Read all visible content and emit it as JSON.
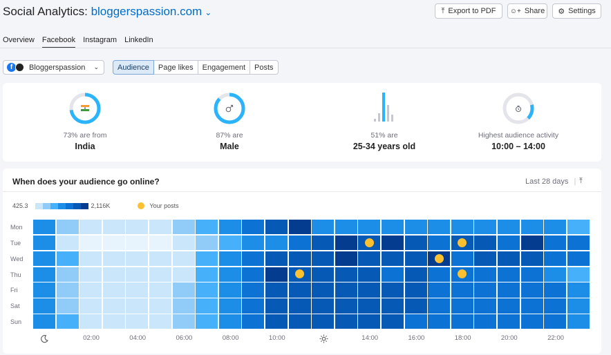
{
  "header": {
    "title_prefix": "Social Analytics:",
    "domain": "bloggerspassion.com",
    "buttons": {
      "export": "Export to PDF",
      "share": "Share",
      "settings": "Settings"
    }
  },
  "tabs": [
    "Overview",
    "Facebook",
    "Instagram",
    "LinkedIn"
  ],
  "active_tab": "Facebook",
  "account_selector": {
    "value": "Bloggerspassion"
  },
  "segments": [
    "Audience",
    "Page likes",
    "Engagement",
    "Posts"
  ],
  "active_segment": "Audience",
  "stats": [
    {
      "label": "73% are from",
      "value": "India",
      "icon": "india-flag-icon",
      "percent": 73
    },
    {
      "label": "87% are",
      "value": "Male",
      "icon": "male-symbol-icon",
      "percent": 87
    },
    {
      "label": "51% are",
      "value": "25-34 years old",
      "icon": "age-bars-icon",
      "percent": 51
    },
    {
      "label": "Highest audience activity",
      "value": "10:00 – 14:00",
      "icon": "clock-icon"
    }
  ],
  "heatmap": {
    "title": "When does your audience go online?",
    "period": "Last 28 days",
    "legend_min": "425.3",
    "legend_max": "2,116K",
    "legend_posts": "Your posts",
    "days": [
      "Mon",
      "Tue",
      "Wed",
      "Thu",
      "Fri",
      "Sat",
      "Sun"
    ],
    "x_ticks": [
      "02:00",
      "04:00",
      "06:00",
      "08:00",
      "10:00",
      "14:00",
      "16:00",
      "18:00",
      "20:00",
      "22:00"
    ],
    "colors": [
      "#e8f4fd",
      "#c9e6fb",
      "#91cbf7",
      "#46b0fa",
      "#1c8ee8",
      "#0c73d5",
      "#0659b5",
      "#043c8f"
    ],
    "levels": [
      [
        4,
        2,
        1,
        1,
        1,
        1,
        2,
        3,
        4,
        5,
        6,
        7,
        4,
        4,
        4,
        4,
        4,
        4,
        4,
        4,
        4,
        4,
        4,
        3
      ],
      [
        4,
        1,
        0,
        0,
        0,
        0,
        1,
        2,
        3,
        4,
        4,
        5,
        6,
        7,
        6,
        7,
        6,
        5,
        6,
        6,
        5,
        7,
        5,
        5
      ],
      [
        4,
        3,
        1,
        1,
        1,
        1,
        1,
        3,
        4,
        5,
        6,
        6,
        6,
        7,
        6,
        6,
        6,
        7,
        5,
        6,
        6,
        6,
        5,
        5
      ],
      [
        4,
        2,
        1,
        1,
        1,
        1,
        1,
        3,
        4,
        5,
        7,
        6,
        6,
        6,
        6,
        5,
        6,
        5,
        5,
        5,
        5,
        5,
        4,
        3
      ],
      [
        4,
        2,
        1,
        1,
        1,
        1,
        2,
        3,
        4,
        5,
        6,
        6,
        6,
        6,
        6,
        6,
        6,
        5,
        5,
        5,
        5,
        5,
        5,
        4
      ],
      [
        4,
        2,
        1,
        1,
        1,
        1,
        2,
        3,
        4,
        5,
        6,
        6,
        6,
        6,
        6,
        6,
        6,
        5,
        5,
        5,
        5,
        5,
        5,
        4
      ],
      [
        4,
        3,
        1,
        1,
        1,
        1,
        2,
        3,
        4,
        5,
        6,
        6,
        6,
        6,
        6,
        6,
        5,
        5,
        5,
        5,
        5,
        5,
        5,
        4
      ]
    ],
    "posts": [
      [
        1,
        14
      ],
      [
        1,
        18
      ],
      [
        2,
        17
      ],
      [
        3,
        11
      ],
      [
        3,
        18
      ]
    ]
  }
}
